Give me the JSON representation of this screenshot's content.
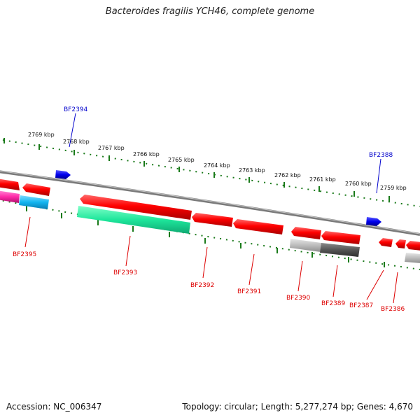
{
  "header": {
    "title": "Bacteroides fragilis YCH46, complete genome"
  },
  "footer": {
    "accession": "Accession: NC_006347",
    "summary": "Topology: circular; Length: 5,277,274 bp; Genes: 4,670"
  },
  "colors": {
    "forward_label": "#0000cc",
    "reverse_label": "#dd0000",
    "backbone": "#8a8a8a",
    "scale_ticks": "#1a7a1a"
  },
  "scale_labels": [
    "2769 kbp",
    "2768 kbp",
    "2767 kbp",
    "2766 kbp",
    "2765 kbp",
    "2764 kbp",
    "2763 kbp",
    "2762 kbp",
    "2761 kbp",
    "2760 kbp",
    "2759 kbp"
  ],
  "forward_genes": [
    {
      "label": "BF2394",
      "color": "#0000ee"
    },
    {
      "label": "BF2388",
      "color": "#0000ee"
    }
  ],
  "reverse_genes": [
    {
      "label": "BF2395"
    },
    {
      "label": "BF2393"
    },
    {
      "label": "BF2392"
    },
    {
      "label": "BF2391"
    },
    {
      "label": "BF2390"
    },
    {
      "label": "BF2389"
    },
    {
      "label": "BF2387"
    },
    {
      "label": "BF2386"
    }
  ]
}
